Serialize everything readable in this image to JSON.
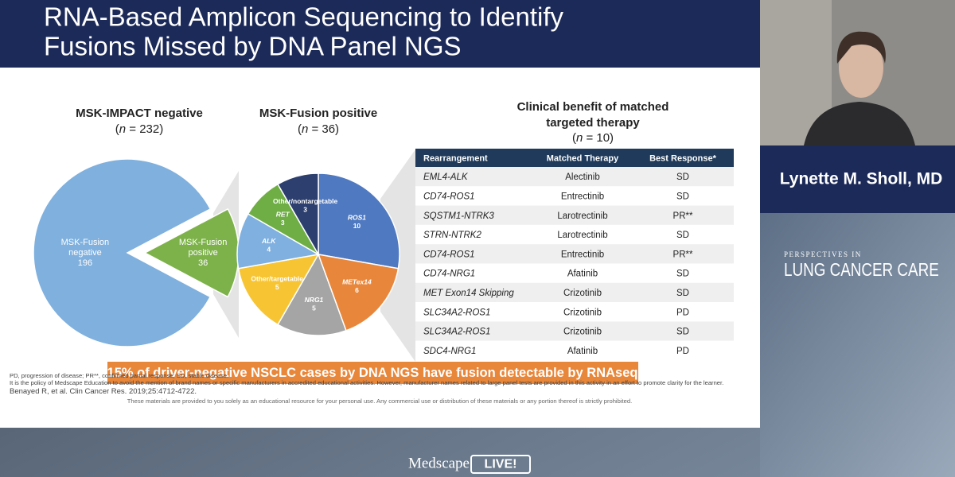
{
  "header": {
    "title_lines": [
      "RNA-Based Amplicon Sequencing to Identify",
      "Fusions Missed by DNA Panel NGS"
    ]
  },
  "charts": [
    {
      "type": "pie",
      "title": "MSK-IMPACT negative",
      "subtitle": [
        "(",
        "n",
        " = 232)"
      ],
      "slices": [
        {
          "label": [
            "MSK-Fusion",
            "negative"
          ],
          "value": 196,
          "color": "#7fb0de"
        },
        {
          "label": [
            "MSK-Fusion",
            "positive"
          ],
          "value": 36,
          "color": "#7db24a"
        }
      ]
    },
    {
      "type": "pie",
      "title": "MSK-Fusion positive",
      "subtitle": [
        "(",
        "n",
        " = 36)"
      ],
      "slices": [
        {
          "label": [
            "ROS1"
          ],
          "value": 10,
          "color": "#4f79c0"
        },
        {
          "label": [
            "METex14"
          ],
          "value": 6,
          "color": "#e8873c"
        },
        {
          "label": [
            "NRG1"
          ],
          "value": 5,
          "color": "#a5a5a5"
        },
        {
          "label": [
            "Other/targetable"
          ],
          "value": 5,
          "color": "#f7c533"
        },
        {
          "label": [
            "ALK"
          ],
          "value": 4,
          "color": "#7fb0e0"
        },
        {
          "label": [
            "RET"
          ],
          "value": 3,
          "color": "#6fae45"
        },
        {
          "label": [
            "Other/nontargetable"
          ],
          "value": 3,
          "color": "#2d3f6e"
        }
      ]
    }
  ],
  "table": {
    "title_lines": [
      "Clinical benefit of matched",
      "targeted therapy"
    ],
    "subtitle": [
      "(",
      "n",
      " = 10)"
    ],
    "columns": [
      "Rearrangement",
      "Matched Therapy",
      "Best Response*"
    ],
    "rows": [
      [
        "EML4-ALK",
        "Alectinib",
        "SD"
      ],
      [
        "CD74-ROS1",
        "Entrectinib",
        "SD"
      ],
      [
        "SQSTM1-NTRK3",
        "Larotrectinib",
        "PR**"
      ],
      [
        "STRN-NTRK2",
        "Larotrectinib",
        "SD"
      ],
      [
        "CD74-ROS1",
        "Entrectinib",
        "PR**"
      ],
      [
        "CD74-NRG1",
        "Afatinib",
        "SD"
      ],
      [
        "MET Exon14 Skipping",
        "Crizotinib",
        "SD"
      ],
      [
        "SLC34A2-ROS1",
        "Crizotinib",
        "PD"
      ],
      [
        "SLC34A2-ROS1",
        "Crizotinib",
        "SD"
      ],
      [
        "SDC4-NRG1",
        "Afatinib",
        "PD"
      ]
    ]
  },
  "banner": "15% of driver-negative NSCLC cases by DNA NGS have fusion detectable by RNAseq",
  "footnotes": [
    "PD, progression of disease; PR**, confirmed partial response; SD, stable disease.",
    "It is the policy of Medscape Education to avoid the mention of brand names or specific manufacturers in accredited educational activities. However, manufacturer names related to large panel tests are provided in this activity in an effort to promote clarity for the learner."
  ],
  "reference": "Benayed R, et al. Clin Cancer Res. 2019;25:4712-4722.",
  "disclaimer": "These materials are provided to you solely as an educational resource for your personal use. Any commercial use or distribution of these materials or any portion thereof is strictly prohibited.",
  "speaker": {
    "name": "Lynette M. Sholl, MD"
  },
  "brand": {
    "lines": [
      "PERSPECTIVES IN",
      "LUNG CANCER CARE"
    ]
  },
  "footer": {
    "brand": "Medscape",
    "badge": "LIVE!"
  }
}
